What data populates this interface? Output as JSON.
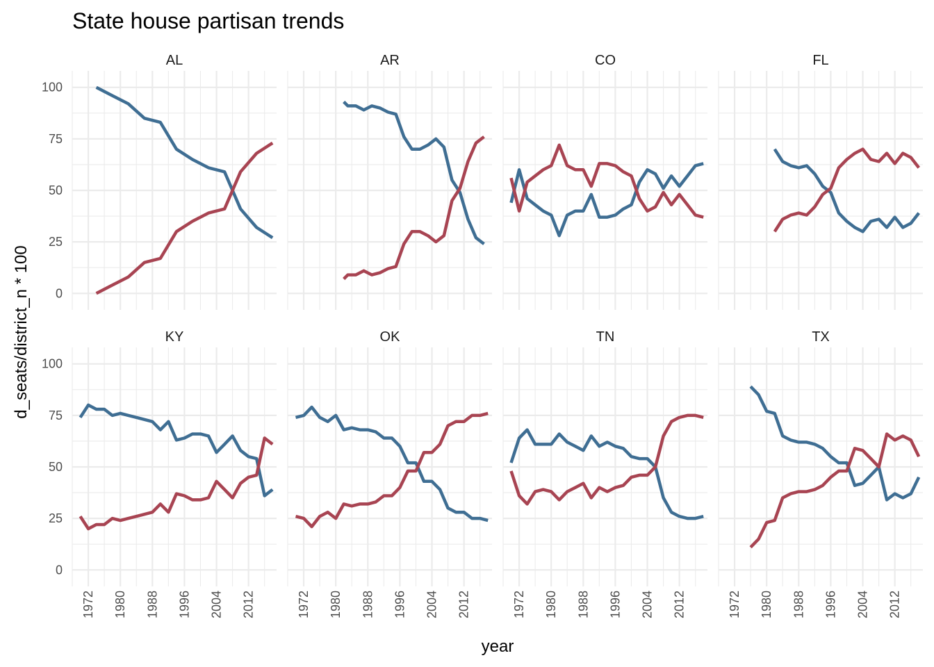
{
  "chart_data": {
    "type": "line",
    "title": "State house partisan trends",
    "xlabel": "year",
    "ylabel": "d_seats/district_n * 100",
    "xlim": [
      1968,
      2019
    ],
    "ylim": [
      -8,
      108
    ],
    "x_ticks": [
      1972,
      1980,
      1988,
      1996,
      2004,
      2012
    ],
    "y_ticks": [
      0,
      25,
      50,
      75,
      100
    ],
    "grid": true,
    "legend": "none",
    "colors": {
      "blue": "#3f6e93",
      "red": "#a84452"
    },
    "layout": {
      "cols": 4,
      "rows": 2
    },
    "panels": [
      {
        "label": "AL",
        "series": [
          {
            "color": "blue",
            "x": [
              1974,
              1978,
              1982,
              1986,
              1990,
              1994,
              1998,
              2002,
              2006,
              2010,
              2014,
              2018
            ],
            "y": [
              100,
              96,
              92,
              85,
              83,
              70,
              65,
              61,
              59,
              41,
              32,
              27
            ]
          },
          {
            "color": "red",
            "x": [
              1974,
              1978,
              1982,
              1986,
              1990,
              1994,
              1998,
              2002,
              2006,
              2010,
              2014,
              2018
            ],
            "y": [
              0,
              4,
              8,
              15,
              17,
              30,
              35,
              39,
              41,
              59,
              68,
              73
            ]
          }
        ]
      },
      {
        "label": "AR",
        "series": [
          {
            "color": "blue",
            "x": [
              1982,
              1983,
              1985,
              1987,
              1989,
              1991,
              1993,
              1995,
              1997,
              1999,
              2001,
              2003,
              2005,
              2007,
              2009,
              2011,
              2013,
              2015,
              2017
            ],
            "y": [
              93,
              91,
              91,
              89,
              91,
              90,
              88,
              87,
              76,
              70,
              70,
              72,
              75,
              71,
              55,
              49,
              36,
              27,
              24
            ]
          },
          {
            "color": "red",
            "x": [
              1982,
              1983,
              1985,
              1987,
              1989,
              1991,
              1993,
              1995,
              1997,
              1999,
              2001,
              2003,
              2005,
              2007,
              2009,
              2011,
              2013,
              2015,
              2017
            ],
            "y": [
              7,
              9,
              9,
              11,
              9,
              10,
              12,
              13,
              24,
              30,
              30,
              28,
              25,
              28,
              45,
              51,
              64,
              73,
              76
            ]
          }
        ]
      },
      {
        "label": "CO",
        "series": [
          {
            "color": "blue",
            "x": [
              1970,
              1972,
              1974,
              1976,
              1978,
              1980,
              1982,
              1984,
              1986,
              1988,
              1990,
              1992,
              1994,
              1996,
              1998,
              2000,
              2002,
              2004,
              2006,
              2008,
              2010,
              2012,
              2014,
              2016,
              2018
            ],
            "y": [
              44,
              60,
              46,
              43,
              40,
              38,
              28,
              38,
              40,
              40,
              48,
              37,
              37,
              38,
              41,
              43,
              54,
              60,
              58,
              51,
              57,
              52,
              57,
              62,
              63
            ]
          },
          {
            "color": "red",
            "x": [
              1970,
              1972,
              1974,
              1976,
              1978,
              1980,
              1982,
              1984,
              1986,
              1988,
              1990,
              1992,
              1994,
              1996,
              1998,
              2000,
              2002,
              2004,
              2006,
              2008,
              2010,
              2012,
              2014,
              2016,
              2018
            ],
            "y": [
              56,
              40,
              54,
              57,
              60,
              62,
              72,
              62,
              60,
              60,
              52,
              63,
              63,
              62,
              59,
              57,
              46,
              40,
              42,
              49,
              43,
              48,
              43,
              38,
              37
            ]
          }
        ]
      },
      {
        "label": "FL",
        "series": [
          {
            "color": "blue",
            "x": [
              1982,
              1984,
              1986,
              1988,
              1990,
              1992,
              1994,
              1996,
              1998,
              2000,
              2002,
              2004,
              2006,
              2008,
              2010,
              2012,
              2014,
              2016,
              2018
            ],
            "y": [
              70,
              64,
              62,
              61,
              62,
              58,
              52,
              49,
              39,
              35,
              32,
              30,
              35,
              36,
              32,
              37,
              32,
              34,
              39
            ]
          },
          {
            "color": "red",
            "x": [
              1982,
              1984,
              1986,
              1988,
              1990,
              1992,
              1994,
              1996,
              1998,
              2000,
              2002,
              2004,
              2006,
              2008,
              2010,
              2012,
              2014,
              2016,
              2018
            ],
            "y": [
              30,
              36,
              38,
              39,
              38,
              42,
              48,
              51,
              61,
              65,
              68,
              70,
              65,
              64,
              68,
              63,
              68,
              66,
              61
            ]
          }
        ]
      },
      {
        "label": "KY",
        "series": [
          {
            "color": "blue",
            "x": [
              1970,
              1972,
              1974,
              1976,
              1978,
              1980,
              1982,
              1984,
              1986,
              1988,
              1990,
              1992,
              1994,
              1996,
              1998,
              2000,
              2002,
              2004,
              2006,
              2008,
              2010,
              2012,
              2014,
              2016,
              2018
            ],
            "y": [
              74,
              80,
              78,
              78,
              75,
              76,
              75,
              74,
              73,
              72,
              68,
              72,
              63,
              64,
              66,
              66,
              65,
              57,
              61,
              65,
              58,
              55,
              54,
              36,
              39
            ]
          },
          {
            "color": "red",
            "x": [
              1970,
              1972,
              1974,
              1976,
              1978,
              1980,
              1982,
              1984,
              1986,
              1988,
              1990,
              1992,
              1994,
              1996,
              1998,
              2000,
              2002,
              2004,
              2006,
              2008,
              2010,
              2012,
              2014,
              2016,
              2018
            ],
            "y": [
              26,
              20,
              22,
              22,
              25,
              24,
              25,
              26,
              27,
              28,
              32,
              28,
              37,
              36,
              34,
              34,
              35,
              43,
              39,
              35,
              42,
              45,
              46,
              64,
              61
            ]
          }
        ]
      },
      {
        "label": "OK",
        "series": [
          {
            "color": "blue",
            "x": [
              1970,
              1972,
              1974,
              1976,
              1978,
              1980,
              1982,
              1984,
              1986,
              1988,
              1990,
              1992,
              1994,
              1996,
              1998,
              2000,
              2002,
              2004,
              2006,
              2008,
              2010,
              2012,
              2014,
              2016,
              2018
            ],
            "y": [
              74,
              75,
              79,
              74,
              72,
              75,
              68,
              69,
              68,
              68,
              67,
              64,
              64,
              60,
              52,
              52,
              43,
              43,
              39,
              30,
              28,
              28,
              25,
              25,
              24
            ]
          },
          {
            "color": "red",
            "x": [
              1970,
              1972,
              1974,
              1976,
              1978,
              1980,
              1982,
              1984,
              1986,
              1988,
              1990,
              1992,
              1994,
              1996,
              1998,
              2000,
              2002,
              2004,
              2006,
              2008,
              2010,
              2012,
              2014,
              2016,
              2018
            ],
            "y": [
              26,
              25,
              21,
              26,
              28,
              25,
              32,
              31,
              32,
              32,
              33,
              36,
              36,
              40,
              48,
              48,
              57,
              57,
              61,
              70,
              72,
              72,
              75,
              75,
              76
            ]
          }
        ]
      },
      {
        "label": "TN",
        "series": [
          {
            "color": "blue",
            "x": [
              1970,
              1972,
              1974,
              1976,
              1978,
              1980,
              1982,
              1984,
              1986,
              1988,
              1990,
              1992,
              1994,
              1996,
              1998,
              2000,
              2002,
              2004,
              2006,
              2008,
              2010,
              2012,
              2014,
              2016,
              2018
            ],
            "y": [
              52,
              64,
              68,
              61,
              61,
              61,
              66,
              62,
              60,
              58,
              65,
              60,
              62,
              60,
              59,
              55,
              54,
              54,
              50,
              35,
              28,
              26,
              25,
              25,
              26
            ]
          },
          {
            "color": "red",
            "x": [
              1970,
              1972,
              1974,
              1976,
              1978,
              1980,
              1982,
              1984,
              1986,
              1988,
              1990,
              1992,
              1994,
              1996,
              1998,
              2000,
              2002,
              2004,
              2006,
              2008,
              2010,
              2012,
              2014,
              2016,
              2018
            ],
            "y": [
              48,
              36,
              32,
              38,
              39,
              38,
              34,
              38,
              40,
              42,
              35,
              40,
              38,
              40,
              41,
              45,
              46,
              46,
              50,
              65,
              72,
              74,
              75,
              75,
              74
            ]
          }
        ]
      },
      {
        "label": "TX",
        "series": [
          {
            "color": "blue",
            "x": [
              1976,
              1978,
              1980,
              1982,
              1984,
              1986,
              1988,
              1990,
              1992,
              1994,
              1996,
              1998,
              2000,
              2002,
              2004,
              2006,
              2008,
              2010,
              2012,
              2014,
              2016,
              2018
            ],
            "y": [
              89,
              85,
              77,
              76,
              65,
              63,
              62,
              62,
              61,
              59,
              55,
              52,
              52,
              41,
              42,
              46,
              50,
              34,
              37,
              35,
              37,
              45
            ]
          },
          {
            "color": "red",
            "x": [
              1976,
              1978,
              1980,
              1982,
              1984,
              1986,
              1988,
              1990,
              1992,
              1994,
              1996,
              1998,
              2000,
              2002,
              2004,
              2006,
              2008,
              2010,
              2012,
              2014,
              2016,
              2018
            ],
            "y": [
              11,
              15,
              23,
              24,
              35,
              37,
              38,
              38,
              39,
              41,
              45,
              48,
              48,
              59,
              58,
              54,
              50,
              66,
              63,
              65,
              63,
              55
            ]
          }
        ]
      }
    ]
  }
}
